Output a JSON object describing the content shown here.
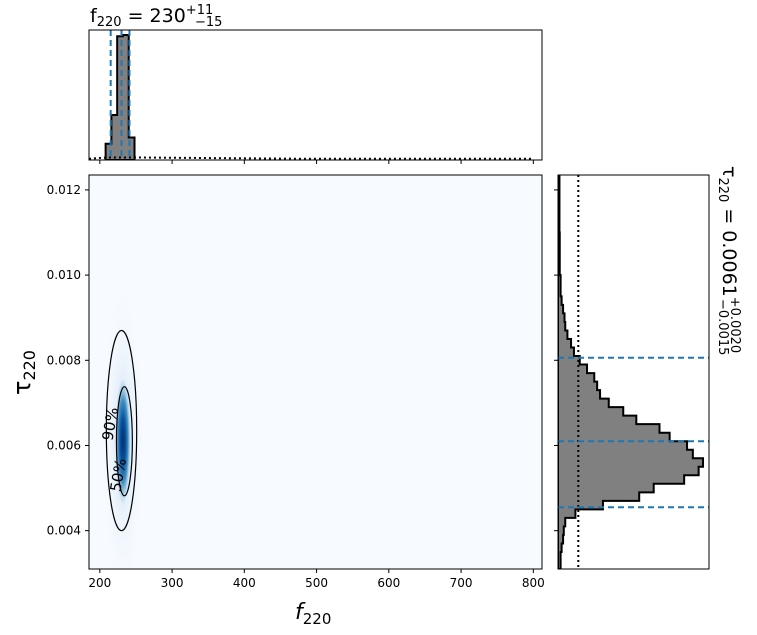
{
  "chart_data": [
    {
      "type": "histogram",
      "panel": "top-marginal",
      "title": {
        "base": "f",
        "sub": "220",
        "eq": " = 230",
        "plus": "+11",
        "minus": "−15"
      },
      "x_range": [
        185,
        812
      ],
      "bin_edges": [
        208,
        216,
        224,
        232,
        240,
        248
      ],
      "bin_heights": [
        0.13,
        0.36,
        0.99,
        1.0,
        0.18
      ],
      "quantile_lines": [
        215,
        230,
        241
      ],
      "prior": {
        "x": [
          185,
          210,
          250,
          480,
          800
        ],
        "y": [
          0.01,
          0.02,
          0.02,
          0.01,
          0.01
        ]
      }
    },
    {
      "type": "heatmap",
      "panel": "joint",
      "xlabel": {
        "base": "f",
        "sub": "220"
      },
      "ylabel": {
        "base": "τ",
        "sub": "220"
      },
      "x_range": [
        185,
        812
      ],
      "y_range": [
        0.0031,
        0.01235
      ],
      "x_ticks": [
        200,
        300,
        400,
        500,
        600,
        700,
        800
      ],
      "x_tick_labels": [
        "200",
        "300",
        "400",
        "500",
        "600",
        "700",
        "800"
      ],
      "y_ticks": [
        0.004,
        0.006,
        0.008,
        0.01,
        0.012
      ],
      "y_tick_labels": [
        "0.004",
        "0.006",
        "0.008",
        "0.010",
        "0.012"
      ],
      "peak": {
        "f": 232,
        "tau": 0.0061
      },
      "contours": [
        {
          "label": "90%",
          "f_center": 230,
          "tau_center": 0.00635,
          "f_half": 21,
          "tau_half": 0.00235
        },
        {
          "label": "50%",
          "f_center": 234,
          "tau_center": 0.0061,
          "f_half": 11,
          "tau_half": 0.00128
        }
      ]
    },
    {
      "type": "histogram",
      "panel": "right-marginal",
      "orientation": "horizontal",
      "title": {
        "base": "τ",
        "sub": "220",
        "eq": " = 0.0061",
        "plus": "+0.0020",
        "minus": "−0.0015"
      },
      "y_range": [
        0.0031,
        0.01235
      ],
      "bins": [
        [
          0.0031,
          0.0033,
          0.018
        ],
        [
          0.0033,
          0.0035,
          0.018
        ],
        [
          0.0035,
          0.0037,
          0.025
        ],
        [
          0.0037,
          0.0039,
          0.035
        ],
        [
          0.0039,
          0.0041,
          0.04
        ],
        [
          0.0041,
          0.0043,
          0.05
        ],
        [
          0.0043,
          0.0045,
          0.12
        ],
        [
          0.0045,
          0.0047,
          0.31
        ],
        [
          0.0047,
          0.0049,
          0.56
        ],
        [
          0.0049,
          0.0051,
          0.66
        ],
        [
          0.0051,
          0.0053,
          0.87
        ],
        [
          0.0053,
          0.0055,
          0.97
        ],
        [
          0.0055,
          0.0057,
          1.0
        ],
        [
          0.0057,
          0.0059,
          0.93
        ],
        [
          0.0059,
          0.0061,
          0.89
        ],
        [
          0.0061,
          0.0063,
          0.77
        ],
        [
          0.0063,
          0.0065,
          0.7
        ],
        [
          0.0065,
          0.0067,
          0.54
        ],
        [
          0.0067,
          0.0069,
          0.45
        ],
        [
          0.0069,
          0.0071,
          0.35
        ],
        [
          0.0071,
          0.0073,
          0.29
        ],
        [
          0.0073,
          0.0075,
          0.27
        ],
        [
          0.0075,
          0.0077,
          0.25
        ],
        [
          0.0077,
          0.0079,
          0.2
        ],
        [
          0.0079,
          0.0081,
          0.15
        ],
        [
          0.0081,
          0.0083,
          0.11
        ],
        [
          0.0083,
          0.0085,
          0.09
        ],
        [
          0.0085,
          0.0087,
          0.065
        ],
        [
          0.0087,
          0.0089,
          0.05
        ],
        [
          0.0089,
          0.0091,
          0.045
        ],
        [
          0.0091,
          0.0093,
          0.035
        ],
        [
          0.0093,
          0.0095,
          0.025
        ],
        [
          0.0095,
          0.01,
          0.018
        ],
        [
          0.01,
          0.011,
          0.012
        ],
        [
          0.011,
          0.01235,
          0.01
        ]
      ],
      "quantile_lines": [
        0.00455,
        0.0061,
        0.00806
      ],
      "prior_level": 0.14
    }
  ]
}
